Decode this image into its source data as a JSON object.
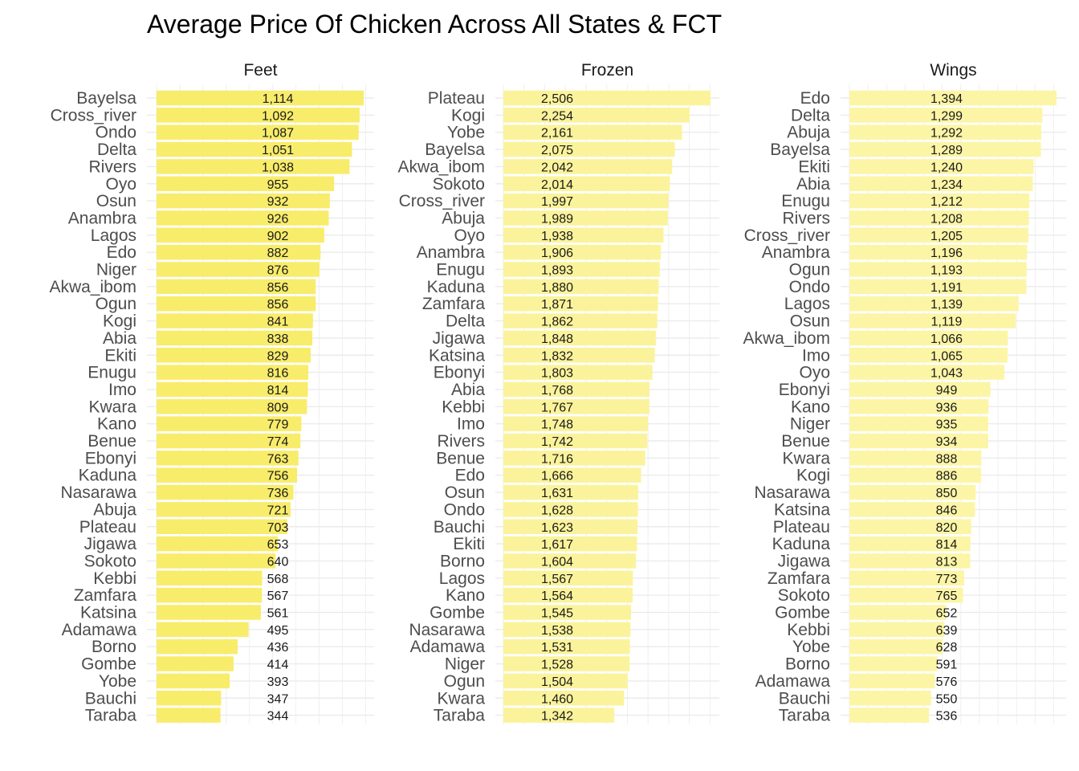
{
  "chart_data": {
    "type": "bar",
    "orientation": "horizontal",
    "title": "Average Price Of Chicken Across All States & FCT",
    "xlabel": "",
    "ylabel": "",
    "grid": true,
    "legend": "none",
    "facets": [
      {
        "name": "Feet",
        "color": "#F8EC6B",
        "xlim": [
          0,
          1114
        ],
        "categories": [
          "Bayelsa",
          "Cross_river",
          "Ondo",
          "Delta",
          "Rivers",
          "Oyo",
          "Osun",
          "Anambra",
          "Lagos",
          "Edo",
          "Niger",
          "Akwa_ibom",
          "Ogun",
          "Kogi",
          "Abia",
          "Ekiti",
          "Enugu",
          "Imo",
          "Kwara",
          "Kano",
          "Benue",
          "Ebonyi",
          "Kaduna",
          "Nasarawa",
          "Abuja",
          "Plateau",
          "Jigawa",
          "Sokoto",
          "Kebbi",
          "Zamfara",
          "Katsina",
          "Adamawa",
          "Borno",
          "Gombe",
          "Yobe",
          "Bauchi",
          "Taraba"
        ],
        "labels": [
          "1,114",
          "1,092",
          "1,087",
          "1,051",
          "1,038",
          "955",
          "932",
          "926",
          "902",
          "882",
          "876",
          "856",
          "856",
          "841",
          "838",
          "829",
          "816",
          "814",
          "809",
          "779",
          "774",
          "763",
          "756",
          "736",
          "721",
          "703",
          "653",
          "640",
          "568",
          "567",
          "561",
          "495",
          "436",
          "414",
          "393",
          "347",
          "344"
        ],
        "values": [
          1114,
          1092,
          1087,
          1051,
          1038,
          955,
          932,
          926,
          902,
          882,
          876,
          856,
          856,
          841,
          838,
          829,
          816,
          814,
          809,
          779,
          774,
          763,
          756,
          736,
          721,
          703,
          653,
          640,
          568,
          567,
          561,
          495,
          436,
          414,
          393,
          347,
          344
        ]
      },
      {
        "name": "Frozen",
        "color": "#FBF39B",
        "xlim": [
          0,
          2506
        ],
        "categories": [
          "Plateau",
          "Kogi",
          "Yobe",
          "Bayelsa",
          "Akwa_ibom",
          "Sokoto",
          "Cross_river",
          "Abuja",
          "Oyo",
          "Anambra",
          "Enugu",
          "Kaduna",
          "Zamfara",
          "Delta",
          "Jigawa",
          "Katsina",
          "Ebonyi",
          "Abia",
          "Kebbi",
          "Imo",
          "Rivers",
          "Benue",
          "Edo",
          "Osun",
          "Ondo",
          "Bauchi",
          "Ekiti",
          "Borno",
          "Lagos",
          "Kano",
          "Gombe",
          "Nasarawa",
          "Adamawa",
          "Niger",
          "Ogun",
          "Kwara",
          "Taraba"
        ],
        "labels": [
          "2,506",
          "2,254",
          "2,161",
          "2,075",
          "2,042",
          "2,014",
          "1,997",
          "1,989",
          "1,938",
          "1,906",
          "1,893",
          "1,880",
          "1,871",
          "1,862",
          "1,848",
          "1,832",
          "1,803",
          "1,768",
          "1,767",
          "1,748",
          "1,742",
          "1,716",
          "1,666",
          "1,631",
          "1,628",
          "1,623",
          "1,617",
          "1,604",
          "1,567",
          "1,564",
          "1,545",
          "1,538",
          "1,531",
          "1,528",
          "1,504",
          "1,460",
          "1,342"
        ],
        "values": [
          2506,
          2254,
          2161,
          2075,
          2042,
          2014,
          1997,
          1989,
          1938,
          1906,
          1893,
          1880,
          1871,
          1862,
          1848,
          1832,
          1803,
          1768,
          1767,
          1748,
          1742,
          1716,
          1666,
          1631,
          1628,
          1623,
          1617,
          1604,
          1567,
          1564,
          1545,
          1538,
          1531,
          1528,
          1504,
          1460,
          1342
        ]
      },
      {
        "name": "Wings",
        "color": "#FCF5A6",
        "xlim": [
          0,
          1394
        ],
        "categories": [
          "Edo",
          "Delta",
          "Abuja",
          "Bayelsa",
          "Ekiti",
          "Abia",
          "Enugu",
          "Rivers",
          "Cross_river",
          "Anambra",
          "Ogun",
          "Ondo",
          "Lagos",
          "Osun",
          "Akwa_ibom",
          "Imo",
          "Oyo",
          "Ebonyi",
          "Kano",
          "Niger",
          "Benue",
          "Kwara",
          "Kogi",
          "Nasarawa",
          "Katsina",
          "Plateau",
          "Kaduna",
          "Jigawa",
          "Zamfara",
          "Sokoto",
          "Gombe",
          "Kebbi",
          "Yobe",
          "Borno",
          "Adamawa",
          "Bauchi",
          "Taraba"
        ],
        "labels": [
          "1,394",
          "1,299",
          "1,292",
          "1,289",
          "1,240",
          "1,234",
          "1,212",
          "1,208",
          "1,205",
          "1,196",
          "1,193",
          "1,191",
          "1,139",
          "1,119",
          "1,066",
          "1,065",
          "1,043",
          "949",
          "936",
          "935",
          "934",
          "888",
          "886",
          "850",
          "846",
          "820",
          "814",
          "813",
          "773",
          "765",
          "652",
          "639",
          "628",
          "591",
          "576",
          "550",
          "536"
        ],
        "values": [
          1394,
          1299,
          1292,
          1289,
          1240,
          1234,
          1212,
          1208,
          1205,
          1196,
          1193,
          1191,
          1139,
          1119,
          1066,
          1065,
          1043,
          949,
          936,
          935,
          934,
          888,
          886,
          850,
          846,
          820,
          814,
          813,
          773,
          765,
          652,
          639,
          628,
          591,
          576,
          550,
          536
        ]
      }
    ]
  }
}
